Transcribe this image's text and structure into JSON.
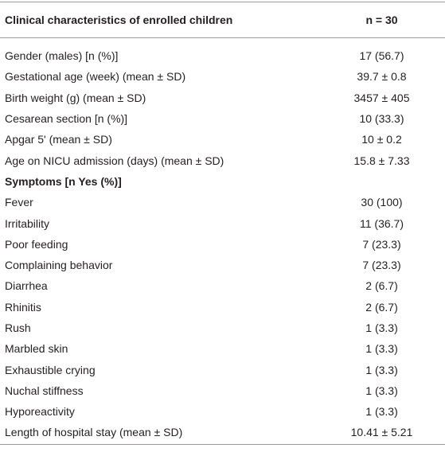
{
  "table": {
    "header": {
      "label": "Clinical characteristics of enrolled children",
      "value": "n = 30"
    },
    "rows": [
      [
        "Gender (males) [n (%)]",
        "17 (56.7)"
      ],
      [
        "Gestational age (week) (mean ± SD)",
        "39.7 ± 0.8"
      ],
      [
        "Birth weight (g) (mean ± SD)",
        "3457 ± 405"
      ],
      [
        "Cesarean section [n (%)]",
        "10 (33.3)"
      ],
      [
        "Apgar 5' (mean ± SD)",
        "10 ± 0.2"
      ],
      [
        "Age on NICU admission (days) (mean ± SD)",
        "15.8 ± 7.33"
      ]
    ],
    "section": "Symptoms [n Yes (%)]",
    "symptoms": [
      [
        "Fever",
        "30 (100)"
      ],
      [
        "Irritability",
        "11 (36.7)"
      ],
      [
        "Poor feeding",
        "7 (23.3)"
      ],
      [
        "Complaining behavior",
        "7 (23.3)"
      ],
      [
        "Diarrhea",
        "2 (6.7)"
      ],
      [
        "Rhinitis",
        "2 (6.7)"
      ],
      [
        "Rush",
        "1 (3.3)"
      ],
      [
        "Marbled skin",
        "1 (3.3)"
      ],
      [
        "Exhaustible crying",
        "1 (3.3)"
      ],
      [
        "Nuchal stiffness",
        "1 (3.3)"
      ],
      [
        "Hyporeactivity",
        "1 (3.3)"
      ]
    ],
    "final_rows": [
      [
        "Length of hospital stay (mean ± SD)",
        "10.41 ± 5.21"
      ]
    ]
  }
}
